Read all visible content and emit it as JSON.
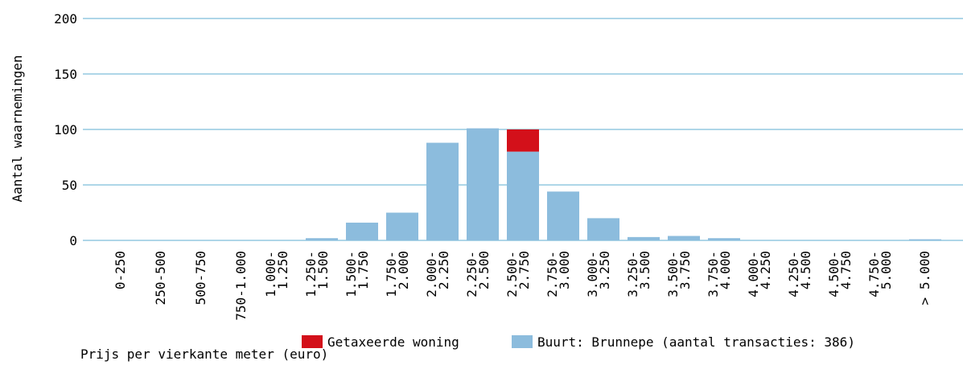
{
  "chart_data": {
    "type": "bar",
    "stacked": true,
    "xlabel": "Prijs per vierkante meter (euro)",
    "ylabel": "Aantal waarnemingen",
    "categories": [
      "0-250",
      "250-500",
      "500-750",
      "750-1.000",
      "1.000-1.250",
      "1.250-1.500",
      "1.500-1.750",
      "1.750-2.000",
      "2.000-2.250",
      "2.250-2.500",
      "2.500-2.750",
      "2.750-3.000",
      "3.000-3.250",
      "3.250-3.500",
      "3.500-3.750",
      "3.750-4.000",
      "4.000-4.250",
      "4.250-4.500",
      "4.500-4.750",
      "4.750-5.000",
      "> 5.000"
    ],
    "series": [
      {
        "name": "Buurt: Brunnepe (aantal transacties: 386)",
        "color": "#8cbcdd",
        "values": [
          0,
          0,
          0,
          0,
          0,
          2,
          16,
          25,
          88,
          101,
          80,
          44,
          20,
          3,
          4,
          2,
          0,
          0,
          0,
          0,
          1
        ]
      },
      {
        "name": "Getaxeerde woning",
        "color": "#d3101a",
        "values": [
          0,
          0,
          0,
          0,
          0,
          0,
          0,
          0,
          0,
          0,
          20,
          0,
          0,
          0,
          0,
          0,
          0,
          0,
          0,
          0,
          0
        ]
      }
    ],
    "legend_order": [
      1,
      0
    ],
    "ylim": [
      0,
      200
    ],
    "yticks": [
      0,
      50,
      100,
      150,
      200
    ],
    "grid": true,
    "grid_color": "#5eaed0"
  }
}
